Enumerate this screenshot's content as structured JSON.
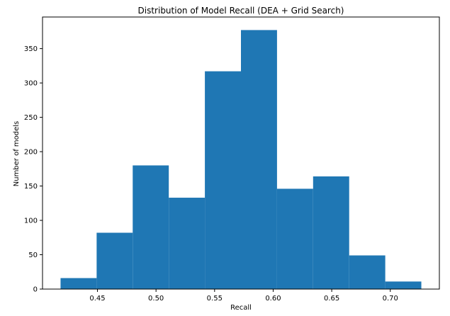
{
  "chart_data": {
    "type": "bar",
    "subtype": "histogram",
    "title": "Distribution of Model Recall (DEA + Grid Search)",
    "xlabel": "Recall",
    "ylabel": "Number of models",
    "bin_edges": [
      0.4185,
      0.4493,
      0.4801,
      0.5109,
      0.5417,
      0.5725,
      0.6033,
      0.6341,
      0.6649,
      0.6957,
      0.7265
    ],
    "values": [
      16,
      82,
      180,
      133,
      317,
      377,
      146,
      164,
      49,
      11
    ],
    "xlim": [
      0.4031,
      0.7419
    ],
    "ylim": [
      0,
      396
    ],
    "xticks": [
      0.45,
      0.5,
      0.55,
      0.6,
      0.65,
      0.7
    ],
    "xtick_labels": [
      "0.45",
      "0.50",
      "0.55",
      "0.60",
      "0.65",
      "0.70"
    ],
    "yticks": [
      0,
      50,
      100,
      150,
      200,
      250,
      300,
      350
    ],
    "ytick_labels": [
      "0",
      "50",
      "100",
      "150",
      "200",
      "250",
      "300",
      "350"
    ],
    "grid": false,
    "bar_color": "#1f77b4"
  }
}
